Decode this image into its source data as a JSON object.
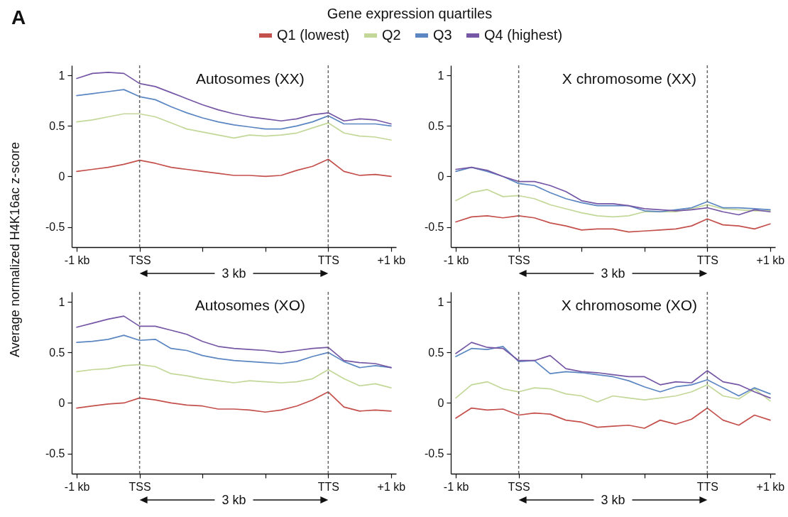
{
  "chart_data": [
    {
      "type": "line",
      "title": "Autosomes (XX)",
      "ylabel": "Average normalized H4K16ac z-score",
      "legend_title": "Gene expression quartiles",
      "legend": "top",
      "annotations": [
        "A",
        "3 kb"
      ],
      "categories": [
        "-1 kb",
        null,
        null,
        null,
        "TSS",
        null,
        null,
        null,
        null,
        null,
        null,
        null,
        null,
        null,
        null,
        null,
        "TTS",
        null,
        null,
        null,
        "+1 kb"
      ],
      "ylim": [
        -0.7,
        1.1
      ],
      "yticks": [
        -0.5,
        0,
        0.5,
        1
      ],
      "ref_lines": [
        {
          "axis": "x",
          "value": "TSS",
          "color": "#666666",
          "line_style": "dashed"
        },
        {
          "axis": "x",
          "value": "TTS",
          "color": "#666666",
          "line_style": "dashed"
        }
      ],
      "series": [
        {
          "name": "Q1 (lowest)",
          "color": "#c4504c",
          "values": [
            0.05,
            0.07,
            0.09,
            0.12,
            0.16,
            0.13,
            0.09,
            0.07,
            0.05,
            0.03,
            0.01,
            0.01,
            0.0,
            0.01,
            0.06,
            0.1,
            0.17,
            0.05,
            0.01,
            0.02,
            0.0
          ]
        },
        {
          "name": "Q2",
          "color": "#c3d898",
          "values": [
            0.54,
            0.56,
            0.59,
            0.62,
            0.62,
            0.59,
            0.53,
            0.47,
            0.44,
            0.41,
            0.38,
            0.41,
            0.4,
            0.41,
            0.43,
            0.48,
            0.53,
            0.43,
            0.4,
            0.39,
            0.36
          ]
        },
        {
          "name": "Q3",
          "color": "#5b86c2",
          "values": [
            0.8,
            0.82,
            0.84,
            0.86,
            0.79,
            0.76,
            0.69,
            0.63,
            0.58,
            0.54,
            0.51,
            0.49,
            0.47,
            0.47,
            0.5,
            0.54,
            0.6,
            0.52,
            0.52,
            0.52,
            0.5
          ]
        },
        {
          "name": "Q4 (highest)",
          "color": "#7557a6",
          "values": [
            0.97,
            1.02,
            1.03,
            1.02,
            0.92,
            0.89,
            0.83,
            0.77,
            0.71,
            0.66,
            0.62,
            0.59,
            0.57,
            0.55,
            0.57,
            0.61,
            0.63,
            0.55,
            0.57,
            0.56,
            0.52
          ]
        }
      ]
    },
    {
      "type": "line",
      "title": "X chromosome (XX)",
      "annotations": [
        "3 kb"
      ],
      "categories": [
        "-1 kb",
        null,
        null,
        null,
        "TSS",
        null,
        null,
        null,
        null,
        null,
        null,
        null,
        null,
        null,
        null,
        null,
        "TTS",
        null,
        null,
        null,
        "+1 kb"
      ],
      "ylim": [
        -0.7,
        1.1
      ],
      "yticks": [
        -0.5,
        0,
        0.5,
        1
      ],
      "ref_lines": [
        {
          "axis": "x",
          "value": "TSS",
          "color": "#666666",
          "line_style": "dashed"
        },
        {
          "axis": "x",
          "value": "TTS",
          "color": "#666666",
          "line_style": "dashed"
        }
      ],
      "series": [
        {
          "name": "Q1 (lowest)",
          "color": "#c4504c",
          "values": [
            -0.45,
            -0.4,
            -0.39,
            -0.41,
            -0.39,
            -0.41,
            -0.46,
            -0.49,
            -0.53,
            -0.52,
            -0.52,
            -0.55,
            -0.54,
            -0.53,
            -0.52,
            -0.49,
            -0.42,
            -0.48,
            -0.49,
            -0.52,
            -0.47
          ]
        },
        {
          "name": "Q2",
          "color": "#c3d898",
          "values": [
            -0.24,
            -0.16,
            -0.13,
            -0.2,
            -0.19,
            -0.22,
            -0.28,
            -0.32,
            -0.36,
            -0.39,
            -0.4,
            -0.39,
            -0.35,
            -0.35,
            -0.35,
            -0.32,
            -0.28,
            -0.32,
            -0.33,
            -0.34,
            -0.34
          ]
        },
        {
          "name": "Q3",
          "color": "#5b86c2",
          "values": [
            0.05,
            0.09,
            0.05,
            0.0,
            -0.07,
            -0.09,
            -0.16,
            -0.22,
            -0.26,
            -0.29,
            -0.29,
            -0.29,
            -0.34,
            -0.35,
            -0.33,
            -0.31,
            -0.25,
            -0.31,
            -0.31,
            -0.32,
            -0.33
          ]
        },
        {
          "name": "Q4 (highest)",
          "color": "#7557a6",
          "values": [
            0.07,
            0.09,
            0.06,
            0.0,
            -0.05,
            -0.05,
            -0.09,
            -0.15,
            -0.24,
            -0.27,
            -0.27,
            -0.29,
            -0.32,
            -0.33,
            -0.34,
            -0.33,
            -0.31,
            -0.35,
            -0.38,
            -0.33,
            -0.35
          ]
        }
      ]
    },
    {
      "type": "line",
      "title": "Autosomes (XO)",
      "annotations": [
        "3 kb"
      ],
      "categories": [
        "-1 kb",
        null,
        null,
        null,
        "TSS",
        null,
        null,
        null,
        null,
        null,
        null,
        null,
        null,
        null,
        null,
        null,
        "TTS",
        null,
        null,
        null,
        "+1 kb"
      ],
      "ylim": [
        -0.7,
        1.1
      ],
      "yticks": [
        -0.5,
        0,
        0.5,
        1
      ],
      "ref_lines": [
        {
          "axis": "x",
          "value": "TSS",
          "color": "#666666",
          "line_style": "dashed"
        },
        {
          "axis": "x",
          "value": "TTS",
          "color": "#666666",
          "line_style": "dashed"
        }
      ],
      "series": [
        {
          "name": "Q1 (lowest)",
          "color": "#c4504c",
          "values": [
            -0.05,
            -0.03,
            -0.01,
            0.0,
            0.05,
            0.03,
            0.0,
            -0.02,
            -0.03,
            -0.06,
            -0.06,
            -0.07,
            -0.09,
            -0.07,
            -0.03,
            0.03,
            0.11,
            -0.04,
            -0.08,
            -0.07,
            -0.08
          ]
        },
        {
          "name": "Q2",
          "color": "#c3d898",
          "values": [
            0.31,
            0.33,
            0.34,
            0.37,
            0.38,
            0.36,
            0.29,
            0.27,
            0.24,
            0.22,
            0.2,
            0.22,
            0.21,
            0.2,
            0.21,
            0.24,
            0.33,
            0.24,
            0.17,
            0.19,
            0.15
          ]
        },
        {
          "name": "Q3",
          "color": "#5b86c2",
          "values": [
            0.6,
            0.61,
            0.63,
            0.67,
            0.62,
            0.63,
            0.54,
            0.52,
            0.47,
            0.44,
            0.42,
            0.41,
            0.4,
            0.39,
            0.41,
            0.46,
            0.5,
            0.41,
            0.35,
            0.37,
            0.35
          ]
        },
        {
          "name": "Q4 (highest)",
          "color": "#7557a6",
          "values": [
            0.75,
            0.79,
            0.83,
            0.86,
            0.76,
            0.76,
            0.72,
            0.68,
            0.61,
            0.56,
            0.54,
            0.53,
            0.52,
            0.5,
            0.52,
            0.54,
            0.55,
            0.42,
            0.4,
            0.39,
            0.35
          ]
        }
      ]
    },
    {
      "type": "line",
      "title": "X chromosome (XO)",
      "annotations": [
        "3 kb"
      ],
      "categories": [
        "-1 kb",
        null,
        null,
        null,
        "TSS",
        null,
        null,
        null,
        null,
        null,
        null,
        null,
        null,
        null,
        null,
        null,
        "TTS",
        null,
        null,
        null,
        "+1 kb"
      ],
      "ylim": [
        -0.7,
        1.1
      ],
      "yticks": [
        -0.5,
        0,
        0.5,
        1
      ],
      "ref_lines": [
        {
          "axis": "x",
          "value": "TSS",
          "color": "#666666",
          "line_style": "dashed"
        },
        {
          "axis": "x",
          "value": "TTS",
          "color": "#666666",
          "line_style": "dashed"
        }
      ],
      "series": [
        {
          "name": "Q1 (lowest)",
          "color": "#c4504c",
          "values": [
            -0.15,
            -0.05,
            -0.07,
            -0.06,
            -0.12,
            -0.1,
            -0.11,
            -0.17,
            -0.19,
            -0.24,
            -0.23,
            -0.22,
            -0.25,
            -0.17,
            -0.21,
            -0.16,
            -0.05,
            -0.17,
            -0.22,
            -0.12,
            -0.17
          ]
        },
        {
          "name": "Q2",
          "color": "#c3d898",
          "values": [
            0.05,
            0.18,
            0.21,
            0.14,
            0.11,
            0.15,
            0.14,
            0.09,
            0.07,
            0.01,
            0.07,
            0.05,
            0.03,
            0.05,
            0.07,
            0.11,
            0.18,
            0.07,
            0.04,
            0.14,
            0.02
          ]
        },
        {
          "name": "Q3",
          "color": "#5b86c2",
          "values": [
            0.46,
            0.54,
            0.53,
            0.56,
            0.41,
            0.42,
            0.29,
            0.31,
            0.3,
            0.28,
            0.26,
            0.22,
            0.16,
            0.11,
            0.16,
            0.18,
            0.23,
            0.15,
            0.07,
            0.15,
            0.09
          ]
        },
        {
          "name": "Q4 (highest)",
          "color": "#7557a6",
          "values": [
            0.49,
            0.6,
            0.55,
            0.54,
            0.42,
            0.42,
            0.47,
            0.34,
            0.31,
            0.3,
            0.28,
            0.26,
            0.26,
            0.18,
            0.21,
            0.2,
            0.32,
            0.21,
            0.18,
            0.11,
            0.05
          ]
        }
      ]
    }
  ]
}
